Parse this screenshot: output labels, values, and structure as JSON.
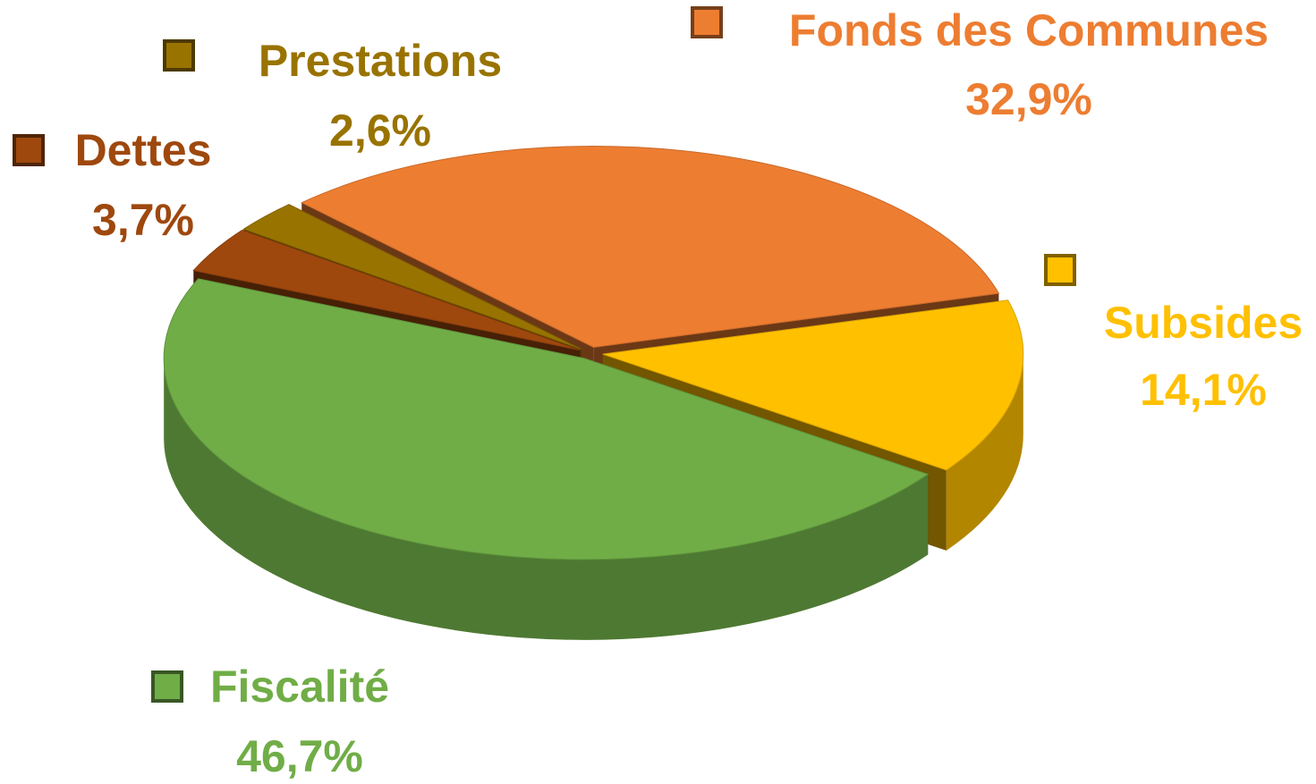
{
  "chart_data": {
    "type": "pie",
    "categories": [
      "Fonds des Communes",
      "Subsides",
      "Fiscalité",
      "Dettes",
      "Prestations"
    ],
    "values": [
      32.9,
      14.1,
      46.7,
      3.7,
      2.6
    ],
    "value_labels": [
      "32,9%",
      "14,1%",
      "46,7%",
      "3,7%",
      "2,6%"
    ],
    "colors": [
      "#ED7D31",
      "#FFC000",
      "#70AD47",
      "#9E480E",
      "#997300"
    ],
    "three_d": true
  }
}
